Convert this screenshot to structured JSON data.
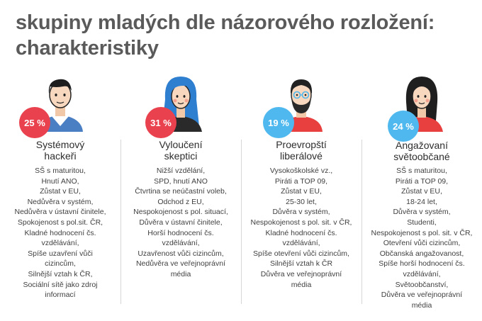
{
  "title": {
    "line1": "skupiny mladých dle názorového rozložení:",
    "line2": "charakteristiky"
  },
  "colors": {
    "title": "#5a5a5a",
    "badge_red": "#e9414e",
    "badge_blue": "#4fb8ee"
  },
  "groups": [
    {
      "percent": "25 %",
      "name_lines": [
        "Systémový",
        "hackeři"
      ],
      "icon": "man-short-hair-avatar-icon",
      "badge_color": "#e9414e",
      "traits": [
        "SŠ s maturitou,",
        "Hnutí ANO,",
        "Zůstat v EU,",
        "Nedůvěra v systém,",
        "Nedůvěra v ústavní činitele,",
        "Spokojenost s pol.sit. ČR,",
        "Kladné hodnocení čs.",
        "vzdělávání,",
        "Spíše uzavření vůči",
        "cizincům,",
        "Silnější vztah k ČR,",
        "Sociální sítě jako zdroj",
        "informací"
      ]
    },
    {
      "percent": "31 %",
      "name_lines": [
        "Vyloučení",
        "skeptici"
      ],
      "icon": "woman-blue-hair-avatar-icon",
      "badge_color": "#e9414e",
      "traits": [
        "Nižší vzdělání,",
        "SPD, hnutí ANO",
        "Čtvrtina se neúčastní  voleb,",
        "Odchod z EU,",
        "Nespokojenost s pol. situací,",
        "Důvěra v ústavní činitele,",
        "Horší hodnocení čs.",
        "vzdělávání,",
        "Uzavřenost vůči cizincům,",
        "Nedůvěra ve veřejnoprávní",
        "média"
      ]
    },
    {
      "percent": "19 %",
      "name_lines": [
        "Proevropští",
        "liberálové"
      ],
      "icon": "bearded-man-glasses-avatar-icon",
      "badge_color": "#4fb8ee",
      "traits": [
        "Vysokoškolské vz.,",
        "Piráti a  TOP 09,",
        "Zůstat v EU,",
        "25-30 let,",
        "Důvěra v systém,",
        "Nespokojenost s pol. sit. v ČR,",
        "Kladné hodnocení čs.",
        "vzdělávání,",
        "Spíše otevření vůči cizincům,",
        "Silnější vztah k ČR",
        "Důvěra ve veřejnoprávní",
        "média"
      ]
    },
    {
      "percent": "24 %",
      "name_lines": [
        "Angažovaní",
        "světoobčané"
      ],
      "icon": "woman-dark-hair-avatar-icon",
      "badge_color": "#4fb8ee",
      "traits": [
        "SŠ s maturitou,",
        "Piráti a  TOP 09,",
        "Zůstat v EU,",
        "18-24 let,",
        "Důvěra v systém,",
        "Studenti,",
        "Nespokojenost s pol. sit. v ČR,",
        "Otevření vůči cizincům,",
        "Občanská angažovanost,",
        "Spíše horší hodnocení čs.",
        "vzdělávání,",
        "Světoobčanství,",
        "Důvěra ve veřejnoprávní",
        "média"
      ]
    }
  ]
}
